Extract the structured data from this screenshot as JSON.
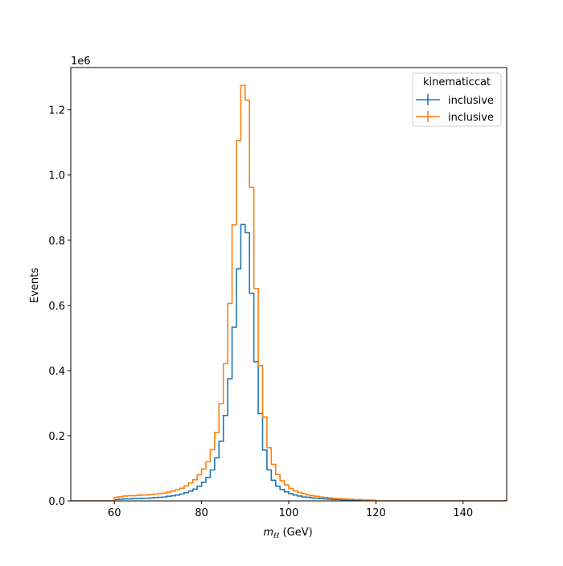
{
  "chart_data": {
    "type": "step",
    "xlabel_math": "m",
    "xlabel_sub": "ℓℓ",
    "xlabel_unit": " (GeV)",
    "ylabel": "Events",
    "y_scale_label": "1e6",
    "xlim": [
      50,
      150
    ],
    "ylim": [
      0,
      1.33
    ],
    "xticks": [
      60,
      80,
      100,
      120,
      140
    ],
    "yticks": [
      "0.0",
      "0.2",
      "0.4",
      "0.6",
      "0.8",
      "1.0",
      "1.2"
    ],
    "ytick_values": [
      0.0,
      0.2,
      0.4,
      0.6,
      0.8,
      1.0,
      1.2
    ],
    "legend": {
      "title": "kinematiccat",
      "placement": "top-right",
      "entries": [
        "inclusive",
        "inclusive"
      ]
    },
    "bin_edges": [
      60,
      61,
      62,
      63,
      64,
      65,
      66,
      67,
      68,
      69,
      70,
      71,
      72,
      73,
      74,
      75,
      76,
      77,
      78,
      79,
      80,
      81,
      82,
      83,
      84,
      85,
      86,
      87,
      88,
      89,
      90,
      91,
      92,
      93,
      94,
      95,
      96,
      97,
      98,
      99,
      100,
      101,
      102,
      103,
      104,
      105,
      106,
      107,
      108,
      109,
      110,
      111,
      112,
      113,
      114,
      115,
      116,
      117,
      118,
      119,
      120
    ],
    "series": [
      {
        "name": "inclusive",
        "color": "#1f77b4",
        "values": [
          0.004,
          0.005,
          0.006,
          0.006,
          0.007,
          0.007,
          0.008,
          0.008,
          0.009,
          0.01,
          0.011,
          0.012,
          0.014,
          0.016,
          0.018,
          0.021,
          0.025,
          0.03,
          0.036,
          0.045,
          0.057,
          0.072,
          0.095,
          0.132,
          0.183,
          0.262,
          0.375,
          0.533,
          0.712,
          0.848,
          0.823,
          0.637,
          0.427,
          0.268,
          0.156,
          0.095,
          0.063,
          0.045,
          0.035,
          0.028,
          0.022,
          0.018,
          0.015,
          0.012,
          0.011,
          0.009,
          0.008,
          0.007,
          0.006,
          0.005,
          0.004,
          0.004,
          0.003,
          0.003,
          0.003,
          0.002,
          0.002,
          0.002,
          0.002,
          0.001
        ]
      },
      {
        "name": "inclusive",
        "color": "#ff7f0e",
        "values": [
          0.011,
          0.013,
          0.015,
          0.016,
          0.016,
          0.017,
          0.018,
          0.018,
          0.019,
          0.021,
          0.022,
          0.024,
          0.027,
          0.03,
          0.034,
          0.039,
          0.046,
          0.055,
          0.065,
          0.08,
          0.098,
          0.12,
          0.157,
          0.21,
          0.298,
          0.421,
          0.606,
          0.847,
          1.106,
          1.275,
          1.23,
          0.962,
          0.652,
          0.415,
          0.257,
          0.163,
          0.112,
          0.081,
          0.062,
          0.049,
          0.038,
          0.031,
          0.026,
          0.022,
          0.018,
          0.016,
          0.014,
          0.012,
          0.01,
          0.009,
          0.008,
          0.007,
          0.006,
          0.005,
          0.005,
          0.004,
          0.004,
          0.003,
          0.003,
          0.002
        ]
      }
    ]
  }
}
